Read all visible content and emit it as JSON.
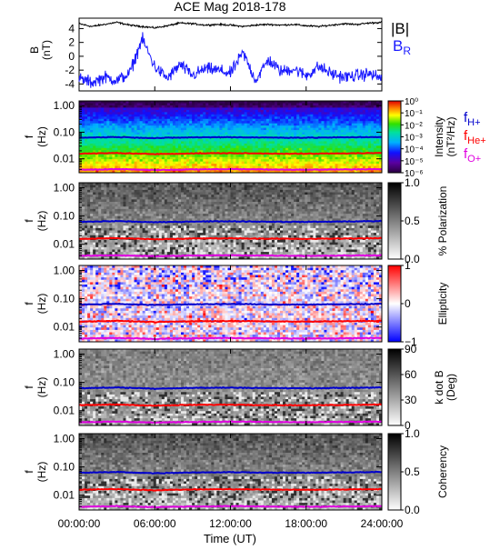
{
  "title": "ACE Mag 2018-178",
  "x_axis": {
    "label": "Time (UT)",
    "ticks": [
      "00:00:00",
      "06:00:00",
      "12:00:00",
      "18:00:00",
      "24:00:00"
    ]
  },
  "colors": {
    "B_total": "#000000",
    "B_R": "#1a1aff",
    "f_H": "#0000cc",
    "f_He": "#ff0000",
    "f_O": "#e000e0"
  },
  "panels": {
    "mag": {
      "ylabel_main": "B",
      "ylabel_unit": "(nT)",
      "legend_total": "|B|",
      "legend_br_main": "B",
      "legend_br_sub": "R"
    },
    "spec": {
      "ylabel_main": "f",
      "ylabel_unit": "(Hz)",
      "colorbar_label_1": "Intensity",
      "colorbar_label_2": "(nT²/Hz)",
      "colorbar_ticks": [
        "10⁰",
        "10⁻¹",
        "10⁻²",
        "10⁻³",
        "10⁻⁴",
        "10⁻⁵",
        "10⁻⁶"
      ],
      "legend": [
        {
          "main": "f",
          "sub": "H+"
        },
        {
          "main": "f",
          "sub": "He+"
        },
        {
          "main": "f",
          "sub": "O+"
        }
      ]
    },
    "pol": {
      "colorbar_label": "% Polarization",
      "colorbar_ticks": [
        "1.0",
        "0.5",
        "0.0"
      ]
    },
    "ell": {
      "colorbar_label": "Ellipticity",
      "colorbar_ticks": [
        "1",
        "0",
        "−1"
      ]
    },
    "kdb": {
      "colorbar_label_1": "k dot B",
      "colorbar_label_2": "(Deg)",
      "colorbar_ticks": [
        "90",
        "60",
        "30",
        "0"
      ]
    },
    "coh": {
      "colorbar_label": "Coherency",
      "colorbar_ticks": [
        "1.0",
        "0.5",
        "0.0"
      ]
    },
    "freq_ticks": [
      "1.00",
      "0.10",
      "0.01"
    ]
  },
  "chart_data": [
    {
      "type": "line",
      "title": "ACE Mag 2018-178",
      "ylabel": "B (nT)",
      "xlabel": "Time (UT)",
      "x_range": [
        "00:00:00",
        "24:00:00"
      ],
      "ylim": [
        -5,
        5.5
      ],
      "yticks": [
        4,
        2,
        0,
        -2,
        -4
      ],
      "series": [
        {
          "name": "|B|",
          "x_hours": [
            0,
            1,
            2,
            3,
            4,
            5,
            6,
            7,
            8,
            9,
            10,
            11,
            12,
            13,
            14,
            15,
            16,
            17,
            18,
            19,
            20,
            21,
            22,
            23,
            24
          ],
          "values": [
            4.7,
            4.3,
            4.6,
            4.9,
            4.5,
            4.3,
            4.1,
            4.4,
            4.8,
            4.7,
            4.5,
            4.6,
            4.5,
            4.3,
            4.5,
            4.6,
            4.5,
            4.6,
            4.4,
            4.3,
            4.5,
            4.7,
            4.6,
            4.8,
            4.9
          ]
        },
        {
          "name": "B",
          "x_hours": [
            0,
            1,
            2,
            3,
            4,
            5,
            6,
            7,
            8,
            9,
            10,
            11,
            12,
            13,
            14,
            15,
            16,
            17,
            18,
            19,
            20,
            21,
            22,
            23,
            24
          ],
          "values": [
            -3.2,
            -3.8,
            -3.0,
            -3.5,
            -2.5,
            2.5,
            -1.5,
            -3.2,
            -1.2,
            -2.8,
            -1.8,
            -2.0,
            -2.5,
            0.5,
            -3.5,
            -0.5,
            -2.2,
            -1.8,
            -2.8,
            -1.5,
            -2.5,
            -3.0,
            -2.8,
            -2.5,
            -3.2
          ]
        }
      ]
    },
    {
      "type": "heatmap",
      "ylabel": "f (Hz)",
      "yscale": "log",
      "ylim": [
        0.003,
        1.5
      ],
      "yticks": [
        1.0,
        0.1,
        0.01
      ],
      "panels": [
        "Intensity (nT²/Hz)",
        "% Polarization",
        "Ellipticity",
        "k dot B (Deg)",
        "Coherency"
      ],
      "series": [
        {
          "name": "fH+",
          "x_hours": [
            0,
            3,
            6,
            9,
            12,
            15,
            18,
            21,
            24
          ],
          "values": [
            0.062,
            0.066,
            0.06,
            0.064,
            0.065,
            0.063,
            0.062,
            0.064,
            0.066
          ]
        },
        {
          "name": "fHe+",
          "x_hours": [
            0,
            3,
            6,
            9,
            12,
            15,
            18,
            21,
            24
          ],
          "values": [
            0.0155,
            0.0165,
            0.015,
            0.016,
            0.0163,
            0.0158,
            0.0155,
            0.016,
            0.0165
          ]
        },
        {
          "name": "fO+",
          "x_hours": [
            0,
            3,
            6,
            9,
            12,
            15,
            18,
            21,
            24
          ],
          "values": [
            0.0039,
            0.0041,
            0.0038,
            0.004,
            0.0041,
            0.004,
            0.0039,
            0.004,
            0.0041
          ]
        }
      ]
    }
  ]
}
